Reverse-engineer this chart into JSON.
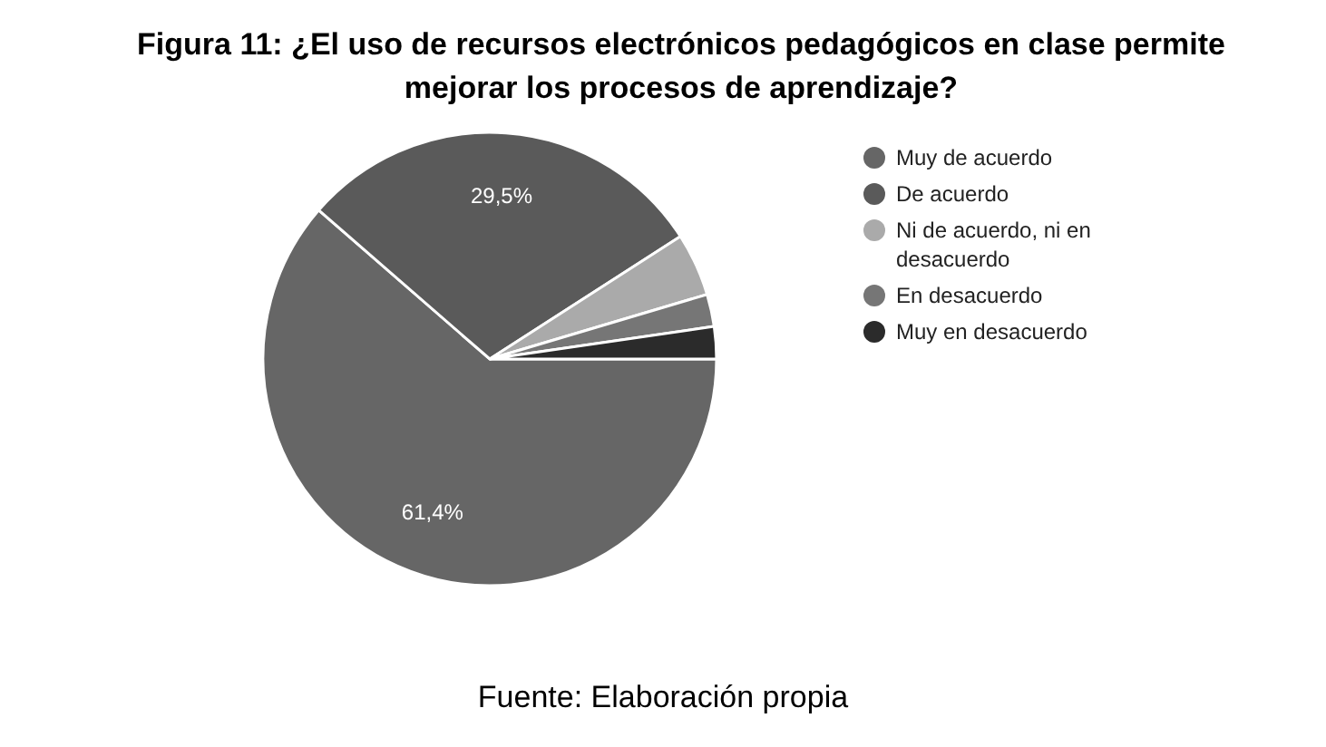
{
  "chart_data": {
    "type": "pie",
    "title": "Figura 11: ¿El uso de recursos electrónicos pedagógicos en clase permite mejorar los procesos de aprendizaje?",
    "categories": [
      "Muy de acuerdo",
      "De acuerdo",
      "Ni de acuerdo, ni en desacuerdo",
      "En desacuerdo",
      "Muy en desacuerdo"
    ],
    "values": [
      61.4,
      29.5,
      4.5,
      2.3,
      2.3
    ],
    "colors": [
      "#666666",
      "#5a5a5a",
      "#aaaaaa",
      "#767676",
      "#2b2b2b"
    ],
    "value_labels": [
      "61,4%",
      "29,5%",
      null,
      null,
      null
    ],
    "legend": "right",
    "annotations": [
      "Fuente: Elaboración propia"
    ]
  }
}
